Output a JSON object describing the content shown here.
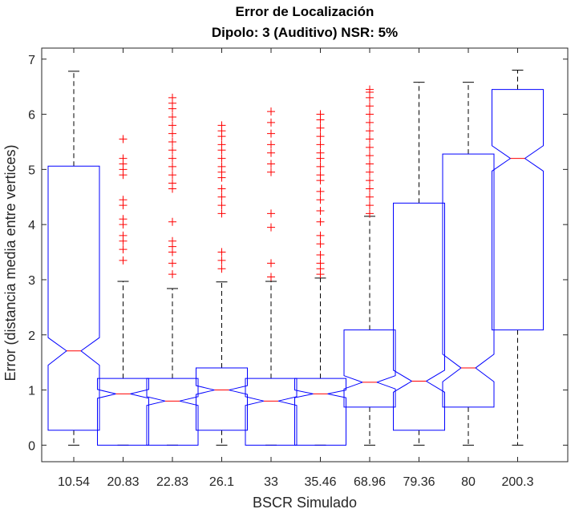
{
  "chart_data": {
    "type": "boxplot",
    "title": "Error de Localización",
    "subtitle": "Dipolo: 3 (Auditivo) NSR: 5%",
    "xlabel": "BSCR Simulado",
    "ylabel": "Error (distancia media entre vertices)",
    "ylim": [
      -0.3,
      7.2
    ],
    "yticks": [
      0,
      1,
      2,
      3,
      4,
      5,
      6,
      7
    ],
    "notched": true,
    "grid": false,
    "colors": {
      "box": "#0000ff",
      "median": "#ff0000",
      "whisker": "#000000",
      "outlier": "#ff0000"
    },
    "categories": [
      "10.54",
      "20.83",
      "22.83",
      "26.1",
      "33",
      "35.46",
      "68.96",
      "79.36",
      "80",
      "200.3"
    ],
    "boxes": [
      {
        "q1": 0.27,
        "median": 1.71,
        "q3": 5.06,
        "whisker_low": 0,
        "whisker_high": 6.78,
        "notch_low": 1.45,
        "notch_high": 1.95,
        "outliers": []
      },
      {
        "q1": 0,
        "median": 0.93,
        "q3": 1.21,
        "whisker_low": 0,
        "whisker_high": 2.97,
        "notch_low": 0.85,
        "notch_high": 1.01,
        "outliers": [
          3.35,
          3.55,
          3.7,
          3.8,
          4.0,
          4.1,
          4.35,
          4.45,
          4.9,
          5.0,
          5.1,
          5.2,
          5.55
        ]
      },
      {
        "q1": 0,
        "median": 0.8,
        "q3": 1.21,
        "whisker_low": 0,
        "whisker_high": 2.84,
        "notch_low": 0.72,
        "notch_high": 0.88,
        "outliers": [
          3.1,
          3.3,
          3.5,
          3.6,
          3.7,
          4.05,
          4.65,
          4.75,
          4.9,
          5.05,
          5.2,
          5.35,
          5.5,
          5.65,
          5.8,
          5.95,
          6.1,
          6.2,
          6.3
        ]
      },
      {
        "q1": 0.27,
        "median": 1.0,
        "q3": 1.4,
        "whisker_low": 0,
        "whisker_high": 2.96,
        "notch_low": 0.92,
        "notch_high": 1.08,
        "outliers": [
          3.2,
          3.35,
          3.5,
          4.2,
          4.35,
          4.5,
          4.65,
          4.85,
          4.95,
          5.05,
          5.2,
          5.35,
          5.45,
          5.6,
          5.7,
          5.8
        ]
      },
      {
        "q1": 0,
        "median": 0.8,
        "q3": 1.21,
        "whisker_low": 0,
        "whisker_high": 2.97,
        "notch_low": 0.72,
        "notch_high": 0.88,
        "outliers": [
          3.05,
          3.3,
          3.95,
          4.2,
          4.95,
          5.1,
          5.3,
          5.45,
          5.65,
          5.85,
          6.05
        ]
      },
      {
        "q1": 0,
        "median": 0.93,
        "q3": 1.21,
        "whisker_low": 0,
        "whisker_high": 3.03,
        "notch_low": 0.86,
        "notch_high": 1.0,
        "outliers": [
          3.1,
          3.2,
          3.3,
          3.45,
          3.65,
          3.8,
          4.05,
          4.25,
          4.45,
          4.6,
          4.8,
          4.9,
          5.05,
          5.2,
          5.3,
          5.45,
          5.6,
          5.75,
          5.9,
          6.0
        ]
      },
      {
        "q1": 0.69,
        "median": 1.14,
        "q3": 2.09,
        "whisker_low": 0,
        "whisker_high": 4.15,
        "notch_low": 1.02,
        "notch_high": 1.26,
        "outliers": [
          4.2,
          4.35,
          4.5,
          4.65,
          4.8,
          4.95,
          5.1,
          5.25,
          5.4,
          5.55,
          5.7,
          5.85,
          6.0,
          6.15,
          6.3,
          6.4,
          6.45
        ]
      },
      {
        "q1": 0.27,
        "median": 1.16,
        "q3": 4.39,
        "whisker_low": 0,
        "whisker_high": 6.58,
        "notch_low": 0.96,
        "notch_high": 1.36,
        "outliers": []
      },
      {
        "q1": 0.69,
        "median": 1.4,
        "q3": 5.28,
        "whisker_low": 0,
        "whisker_high": 6.58,
        "notch_low": 1.15,
        "notch_high": 1.65,
        "outliers": []
      },
      {
        "q1": 2.09,
        "median": 5.2,
        "q3": 6.45,
        "whisker_low": 0,
        "whisker_high": 6.8,
        "notch_low": 4.97,
        "notch_high": 5.43,
        "outliers": []
      }
    ]
  }
}
